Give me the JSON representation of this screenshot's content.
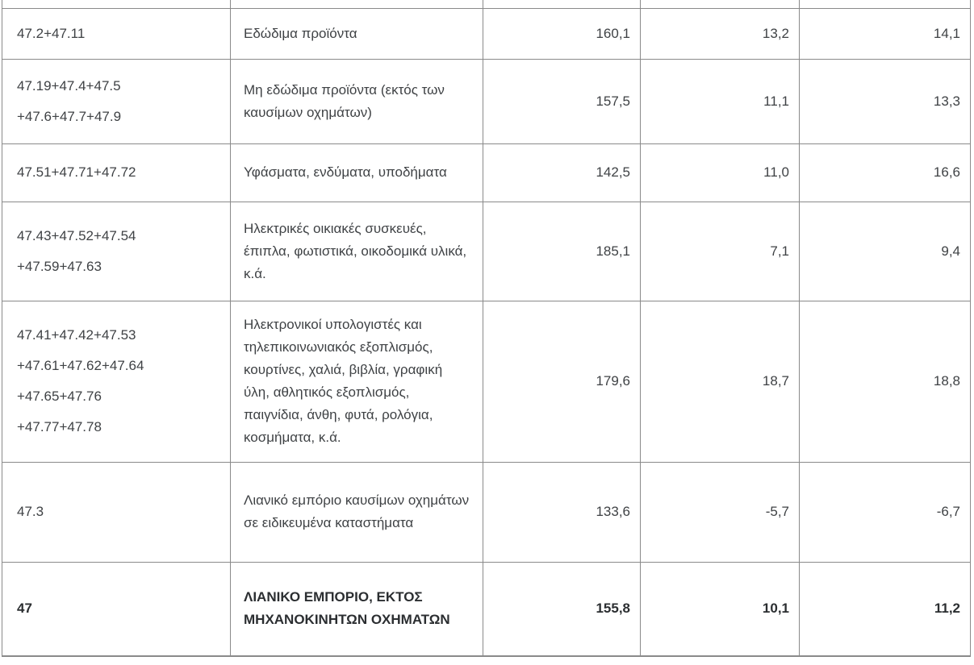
{
  "colors": {
    "border": "#8a8a8a",
    "text": "#3f4245",
    "bold_text": "#2b2e31",
    "background": "#ffffff"
  },
  "table": {
    "rows": [
      {
        "codes": [
          "47.2+47.11"
        ],
        "description": "Εδώδιμα προϊόντα",
        "values": [
          "160,1",
          "13,2",
          "14,1"
        ],
        "bold": false
      },
      {
        "codes": [
          "47.19+47.4+47.5",
          "+47.6+47.7+47.9"
        ],
        "description": "Μη εδώδιμα προϊόντα (εκτός των καυσίμων οχημάτων)",
        "values": [
          "157,5",
          "11,1",
          "13,3"
        ],
        "bold": false
      },
      {
        "codes": [
          "47.51+47.71+47.72"
        ],
        "description": "Υφάσματα, ενδύματα, υποδήματα",
        "values": [
          "142,5",
          "11,0",
          "16,6"
        ],
        "bold": false
      },
      {
        "codes": [
          "47.43+47.52+47.54",
          "+47.59+47.63"
        ],
        "description": "Ηλεκτρικές οικιακές συσκευές, έπιπλα, φωτιστικά, οικοδομικά υλικά, κ.ά.",
        "values": [
          "185,1",
          "7,1",
          "9,4"
        ],
        "bold": false
      },
      {
        "codes": [
          "47.41+47.42+47.53",
          "+47.61+47.62+47.64",
          "+47.65+47.76",
          "+47.77+47.78"
        ],
        "description": "Ηλεκτρονικοί υπολογιστές και τηλεπικοινωνιακός εξοπλισμός, κουρτίνες, χαλιά, βιβλία, γραφική ύλη, αθλητικός εξοπλισμός, παιγνίδια, άνθη, φυτά, ρολόγια, κοσμήματα, κ.ά.",
        "values": [
          "179,6",
          "18,7",
          "18,8"
        ],
        "bold": false
      },
      {
        "codes": [
          "47.3"
        ],
        "description": "Λιανικό εμπόριο καυσίμων οχημάτων σε ειδικευμένα καταστήματα",
        "values": [
          "133,6",
          "-5,7",
          "-6,7"
        ],
        "bold": false
      },
      {
        "codes": [
          "47"
        ],
        "description": "ΛΙΑΝΙΚΟ ΕΜΠΟΡΙΟ, ΕΚΤΟΣ ΜΗΧΑΝΟΚΙΝΗΤΩΝ ΟΧΗΜΑΤΩΝ",
        "values": [
          "155,8",
          "10,1",
          "11,2"
        ],
        "bold": true
      }
    ]
  }
}
